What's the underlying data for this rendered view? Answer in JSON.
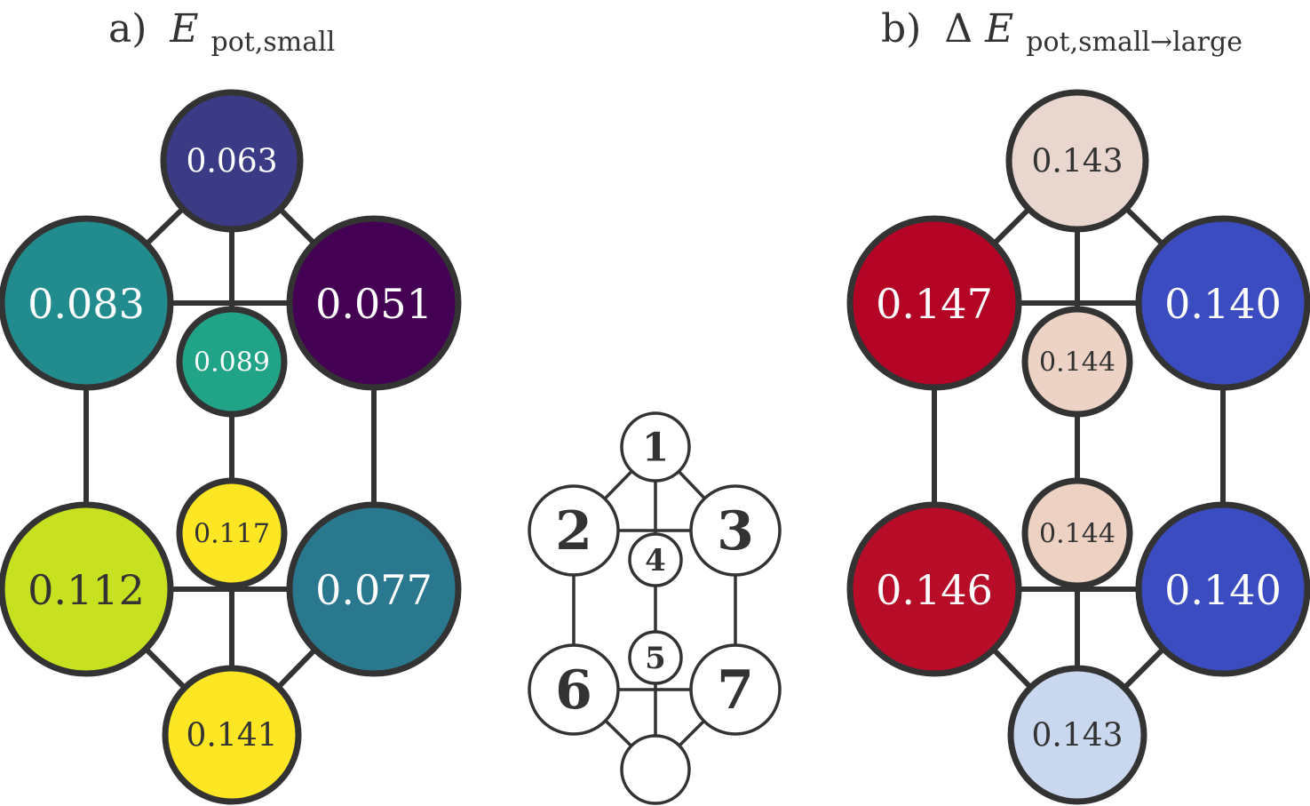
{
  "panels": [
    {
      "prefix": "a)",
      "symbol_prefix": "",
      "symbol": "E",
      "subscript": "pot,small",
      "nodes": [
        {
          "id": 1,
          "value": "0.063",
          "fill": "#3b3b85",
          "text_color": "#ffffff"
        },
        {
          "id": 2,
          "value": "0.083",
          "fill": "#228b8d",
          "text_color": "#ffffff"
        },
        {
          "id": 3,
          "value": "0.051",
          "fill": "#440154",
          "text_color": "#ffffff"
        },
        {
          "id": 4,
          "value": "0.089",
          "fill": "#20a386",
          "text_color": "#ffffff"
        },
        {
          "id": 5,
          "value": "0.117",
          "fill": "#fde725",
          "text_color": "#333333"
        },
        {
          "id": 6,
          "value": "0.112",
          "fill": "#c7e020",
          "text_color": "#333333"
        },
        {
          "id": 7,
          "value": "0.077",
          "fill": "#2a788e",
          "text_color": "#ffffff"
        },
        {
          "id": 8,
          "value": "0.141",
          "fill": "#fde725",
          "text_color": "#333333"
        }
      ]
    },
    {
      "prefix": "b)",
      "symbol_prefix": "Δ",
      "symbol": "E",
      "subscript": "pot,small→large",
      "nodes": [
        {
          "id": 1,
          "value": "0.143",
          "fill": "#e8d6cf",
          "text_color": "#333333"
        },
        {
          "id": 2,
          "value": "0.147",
          "fill": "#b40426",
          "text_color": "#ffffff"
        },
        {
          "id": 3,
          "value": "0.140",
          "fill": "#3b4cc0",
          "text_color": "#ffffff"
        },
        {
          "id": 4,
          "value": "0.144",
          "fill": "#ecd3c5",
          "text_color": "#333333"
        },
        {
          "id": 5,
          "value": "0.144",
          "fill": "#edd1c2",
          "text_color": "#333333"
        },
        {
          "id": 6,
          "value": "0.146",
          "fill": "#b70d28",
          "text_color": "#ffffff"
        },
        {
          "id": 7,
          "value": "0.140",
          "fill": "#3b4cc0",
          "text_color": "#ffffff"
        },
        {
          "id": 8,
          "value": "0.143",
          "fill": "#cad8ef",
          "text_color": "#333333"
        }
      ]
    }
  ],
  "key": {
    "labels": [
      "1",
      "2",
      "3",
      "4",
      "5",
      "6",
      "7",
      ""
    ]
  },
  "edges": [
    [
      1,
      2
    ],
    [
      1,
      3
    ],
    [
      1,
      4
    ],
    [
      2,
      3
    ],
    [
      2,
      6
    ],
    [
      3,
      7
    ],
    [
      4,
      5
    ],
    [
      6,
      7
    ],
    [
      6,
      8
    ],
    [
      7,
      8
    ],
    [
      5,
      8
    ]
  ]
}
